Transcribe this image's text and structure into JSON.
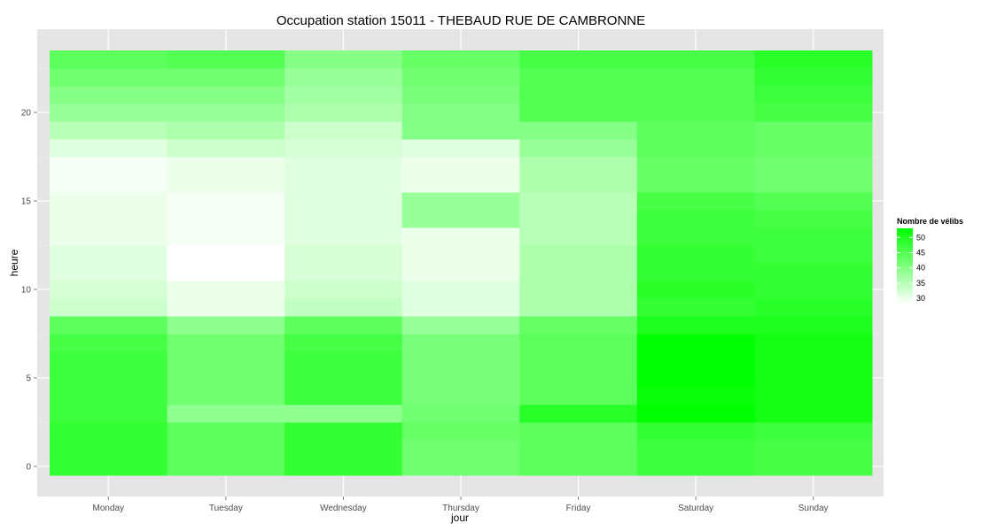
{
  "chart_data": {
    "type": "heatmap",
    "title": "Occupation station 15011 - THEBAUD RUE DE CAMBRONNE",
    "xlabel": "jour",
    "ylabel": "heure",
    "categories": [
      "Monday",
      "Tuesday",
      "Wednesday",
      "Thursday",
      "Friday",
      "Saturday",
      "Sunday"
    ],
    "y": [
      0,
      1,
      2,
      3,
      4,
      5,
      6,
      7,
      8,
      9,
      10,
      11,
      12,
      13,
      14,
      15,
      16,
      17,
      18,
      19,
      20,
      21,
      22,
      23
    ],
    "yticks": [
      0,
      5,
      10,
      15,
      20
    ],
    "ylim": [
      -0.5,
      23.5
    ],
    "grid": true,
    "values": [
      [
        48,
        44,
        48,
        42,
        44,
        47,
        46
      ],
      [
        48,
        44,
        48,
        42,
        44,
        47,
        46
      ],
      [
        48,
        44,
        48,
        43,
        44,
        48,
        47
      ],
      [
        47,
        39,
        39,
        42,
        49,
        53,
        51
      ],
      [
        47,
        42,
        47,
        41,
        44,
        52,
        51
      ],
      [
        47,
        42,
        47,
        41,
        44,
        53,
        51
      ],
      [
        47,
        42,
        47,
        41,
        44,
        53,
        51
      ],
      [
        46,
        42,
        46,
        41,
        44,
        53,
        51
      ],
      [
        44,
        39,
        44,
        38,
        43,
        50,
        50
      ],
      [
        33,
        30,
        34,
        31,
        36,
        48,
        49
      ],
      [
        32,
        30,
        33,
        31,
        36,
        49,
        48
      ],
      [
        31,
        28,
        32,
        30,
        36,
        48,
        48
      ],
      [
        31,
        28,
        32,
        30,
        36,
        48,
        47
      ],
      [
        30,
        29,
        31,
        30,
        35,
        47,
        47
      ],
      [
        30,
        29,
        31,
        38,
        35,
        47,
        46
      ],
      [
        30,
        29,
        31,
        38,
        35,
        46,
        45
      ],
      [
        29,
        30,
        31,
        30,
        36,
        43,
        42
      ],
      [
        29,
        30,
        31,
        30,
        36,
        43,
        42
      ],
      [
        31,
        33,
        32,
        31,
        38,
        44,
        43
      ],
      [
        35,
        36,
        33,
        40,
        40,
        44,
        43
      ],
      [
        38,
        38,
        36,
        40,
        45,
        45,
        46
      ],
      [
        40,
        40,
        37,
        41,
        45,
        45,
        47
      ],
      [
        42,
        42,
        38,
        42,
        45,
        45,
        48
      ],
      [
        44,
        45,
        40,
        43,
        46,
        46,
        49
      ]
    ],
    "legend": {
      "title": "Nombre de vélibs",
      "placement": "right",
      "ticks": [
        50,
        45,
        40,
        35,
        30
      ],
      "range": [
        28,
        53
      ],
      "low_color": "#ffffff",
      "high_color": "#00ff00"
    }
  }
}
